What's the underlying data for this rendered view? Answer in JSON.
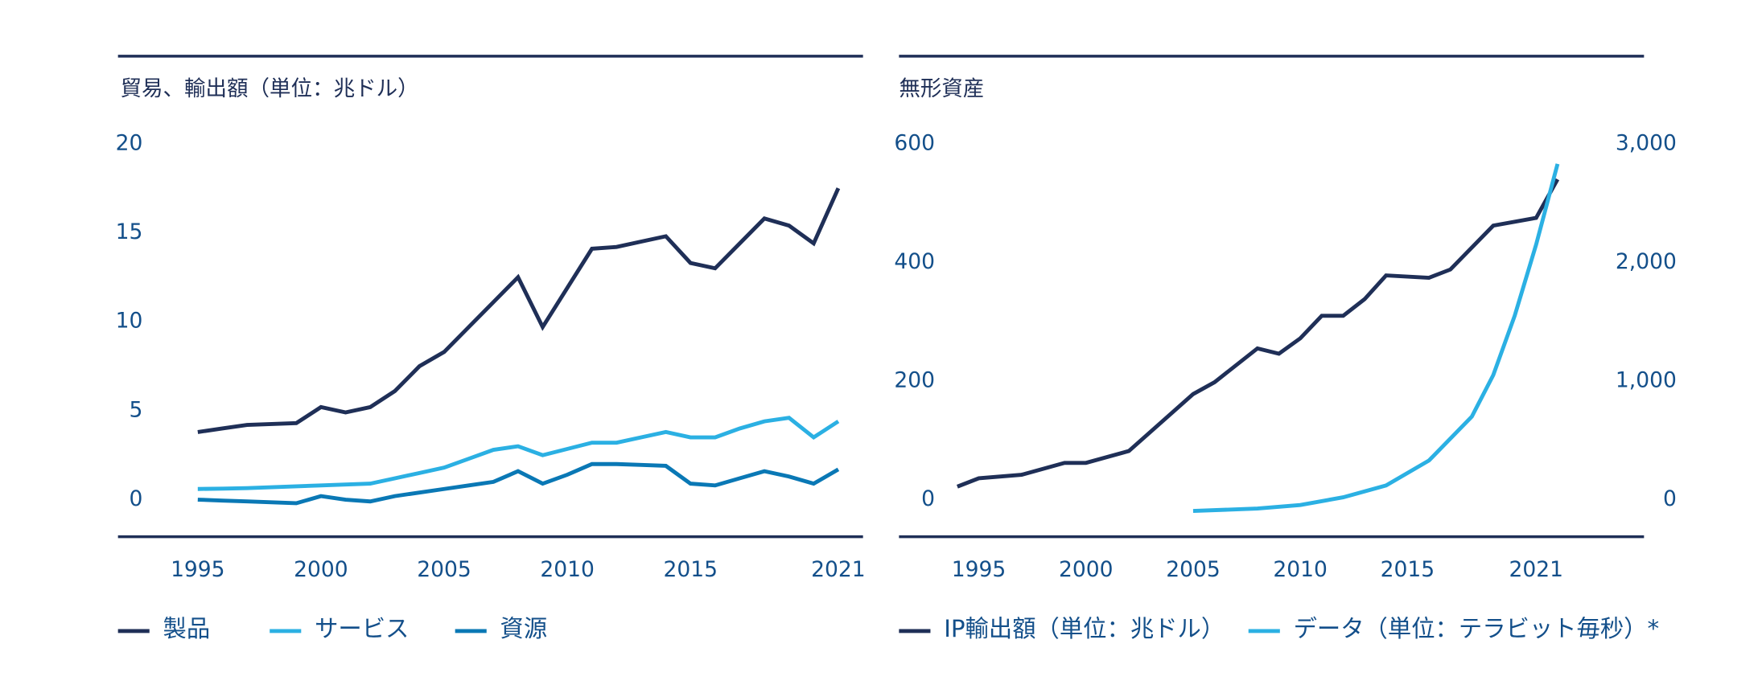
{
  "chart_data": [
    {
      "type": "line",
      "title": "貿易、輸出額（単位：兆ドル）",
      "x": [
        1995,
        1996,
        1997,
        1998,
        1999,
        2000,
        2001,
        2002,
        2003,
        2004,
        2005,
        2006,
        2007,
        2008,
        2009,
        2010,
        2011,
        2012,
        2013,
        2014,
        2015,
        2016,
        2017,
        2018,
        2019,
        2020,
        2021
      ],
      "series": [
        {
          "name": "製品",
          "color": "#1f2f57",
          "values": [
            3.8,
            4.0,
            4.2,
            4.25,
            4.3,
            5.2,
            4.9,
            5.2,
            6.1,
            7.5,
            8.3,
            9.7,
            11.1,
            12.5,
            9.7,
            11.9,
            14.1,
            14.2,
            14.5,
            14.8,
            13.3,
            13.0,
            14.4,
            15.8,
            15.4,
            14.4,
            17.5
          ]
        },
        {
          "name": "サービス",
          "color": "#2bb0e3",
          "values": [
            0.6,
            0.62,
            0.65,
            0.7,
            0.75,
            0.8,
            0.85,
            0.9,
            1.2,
            1.5,
            1.8,
            2.3,
            2.8,
            3.0,
            2.5,
            2.85,
            3.2,
            3.2,
            3.5,
            3.8,
            3.5,
            3.5,
            4.0,
            4.4,
            4.6,
            3.5,
            4.4
          ]
        },
        {
          "name": "資源",
          "color": "#0a78b5",
          "values": [
            0.0,
            -0.05,
            -0.1,
            -0.15,
            -0.2,
            0.2,
            0.0,
            -0.1,
            0.2,
            0.4,
            0.6,
            0.8,
            1.0,
            1.6,
            0.9,
            1.4,
            2.0,
            2.0,
            1.95,
            1.9,
            0.9,
            0.8,
            1.2,
            1.6,
            1.3,
            0.9,
            1.7
          ]
        }
      ],
      "xlim": [
        1995,
        2021
      ],
      "xticks": [
        1995,
        2000,
        2005,
        2010,
        2015,
        2021
      ],
      "ylim": [
        0,
        20
      ],
      "yticks": [
        0,
        5,
        10,
        15,
        20
      ]
    },
    {
      "type": "line",
      "title": "無形資産",
      "series": [
        {
          "name": "IP輸出額（単位：兆ドル）",
          "color": "#1f2f57",
          "x": [
            1994,
            1995,
            1997,
            1999,
            2000,
            2002,
            2005,
            2006,
            2008,
            2009,
            2010,
            2011,
            2012,
            2013,
            2014,
            2016,
            2017,
            2019,
            2021,
            2022
          ],
          "values": [
            22,
            36,
            42,
            62,
            62,
            82,
            178,
            198,
            255,
            246,
            272,
            310,
            310,
            338,
            378,
            374,
            388,
            462,
            475,
            540
          ]
        },
        {
          "name": "データ（単位：テラビット毎秒）*",
          "color": "#2bb0e3",
          "axis": "y2",
          "x": [
            2005,
            2008,
            2010,
            2012,
            2014,
            2016,
            2018,
            2019,
            2020,
            2021,
            2022
          ],
          "values": [
            -95,
            -75,
            -45,
            20,
            120,
            330,
            700,
            1050,
            1550,
            2150,
            2830
          ]
        }
      ],
      "xlim": [
        1995,
        2021
      ],
      "xticks": [
        1995,
        2000,
        2005,
        2010,
        2015,
        2021
      ],
      "ylim": [
        0,
        600
      ],
      "yticks": [
        0,
        200,
        400,
        600
      ],
      "y2lim": [
        0,
        3000
      ],
      "y2ticks": [
        {
          "value": 0,
          "label": "0"
        },
        {
          "value": 1000,
          "label": "1,000"
        },
        {
          "value": 2000,
          "label": "2,000"
        },
        {
          "value": 3000,
          "label": "3,000"
        }
      ]
    }
  ]
}
